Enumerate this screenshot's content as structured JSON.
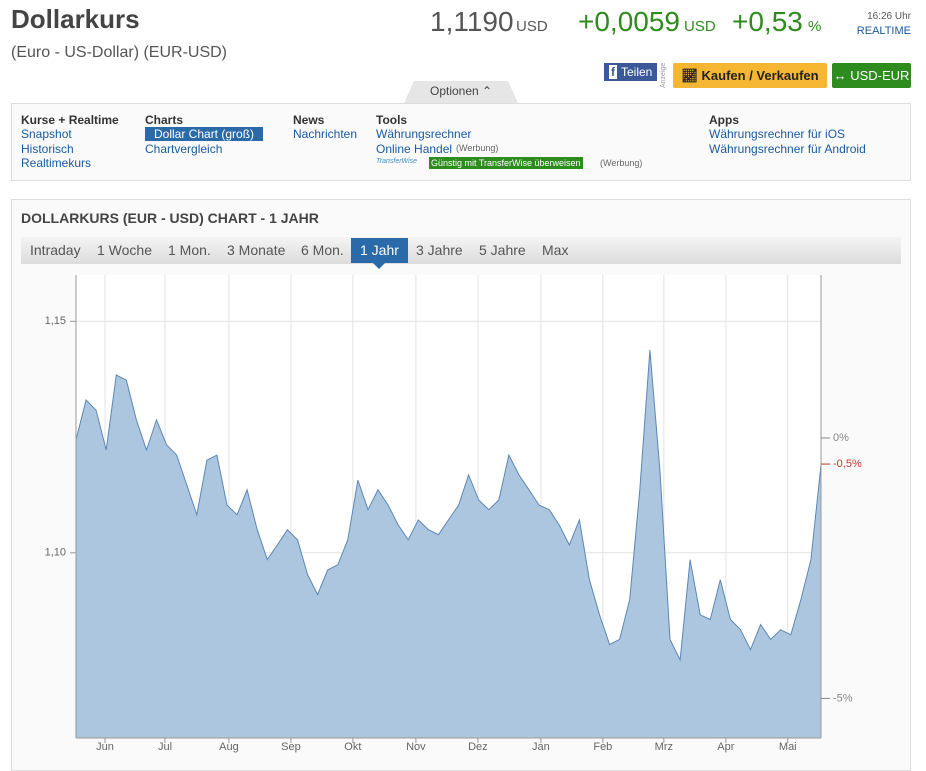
{
  "header": {
    "title": "Dollarkurs",
    "subtitle": "(Euro - US-Dollar) (EUR-USD)",
    "price": "1,1190",
    "price_unit": "USD",
    "change": "+0,0059",
    "change_unit": "USD",
    "change_pct": "+0,53",
    "pct_unit": "%",
    "time": "16:26 Uhr",
    "realtime": "REALTIME"
  },
  "buttons": {
    "share": "Teilen",
    "ad_note": "Anzeige",
    "trade": "Kaufen / Verkaufen",
    "pair": "USD-EUR",
    "options": "Optionen"
  },
  "nav": [
    {
      "heading": "Kurse + Realtime",
      "links": [
        "Snapshot",
        "Historisch",
        "Realtimekurs"
      ]
    },
    {
      "heading": "Charts",
      "links": [
        "Dollar Chart (groß)",
        "Chartvergleich"
      ]
    },
    {
      "heading": "News",
      "links": [
        "Nachrichten"
      ]
    },
    {
      "heading": "Tools",
      "links": [
        "Währungsrechner",
        "Online Handel"
      ],
      "ad": "(Werbung)",
      "promo_logo": "TransferWise",
      "promo": "Günstig mit TransferWise überweisen",
      "promo_ad": "(Werbung)"
    },
    {
      "heading": "Apps",
      "links": [
        "Währungsrechner für iOS",
        "Währungsrechner für Android"
      ]
    }
  ],
  "panel": {
    "title": "DOLLARKURS (EUR - USD) CHART - 1 JAHR",
    "tabs": [
      "Intraday",
      "1 Woche",
      "1 Mon.",
      "3 Monate",
      "6 Mon.",
      "1 Jahr",
      "3 Jahre",
      "5 Jahre",
      "Max"
    ],
    "active_tab": 5
  },
  "chart_data": {
    "type": "area",
    "series": [
      {
        "color": "#5b87b5",
        "fill": "#a9c3dd",
        "values": [
          1.1244,
          1.133,
          1.1308,
          1.1222,
          1.1384,
          1.1373,
          1.1287,
          1.1222,
          1.1287,
          1.1233,
          1.1211,
          1.1147,
          1.1082,
          1.12,
          1.1211,
          1.1103,
          1.1082,
          1.1136,
          1.105,
          1.0985,
          1.1017,
          1.105,
          1.1028,
          1.0953,
          1.091,
          1.0963,
          1.0974,
          1.1028,
          1.1157,
          1.1093,
          1.1136,
          1.1103,
          1.106,
          1.1028,
          1.1071,
          1.105,
          1.1039,
          1.1071,
          1.1103,
          1.1168,
          1.1114,
          1.1093,
          1.1114,
          1.1211,
          1.1168,
          1.1136,
          1.1103,
          1.1093,
          1.106,
          1.1017,
          1.1071,
          1.0942,
          1.0866,
          1.0802,
          1.0813,
          1.0899,
          1.1136,
          1.1438,
          1.1179,
          1.0813,
          1.0769,
          1.0985,
          1.0866,
          1.0856,
          1.0942,
          1.0856,
          1.0834,
          1.0791,
          1.0845,
          1.0813,
          1.0834,
          1.0823,
          1.0899,
          1.0985,
          1.119
        ]
      }
    ],
    "xlim": [
      0,
      74
    ],
    "xticks": [
      {
        "value": 2.88,
        "label": "Jun"
      },
      {
        "value": 8.84,
        "label": "Jul"
      },
      {
        "value": 15.19,
        "label": "Aug"
      },
      {
        "value": 21.35,
        "label": "Sep"
      },
      {
        "value": 27.5,
        "label": "Okt"
      },
      {
        "value": 33.76,
        "label": "Nov"
      },
      {
        "value": 39.92,
        "label": "Dez"
      },
      {
        "value": 46.18,
        "label": "Jan"
      },
      {
        "value": 52.33,
        "label": "Feb"
      },
      {
        "value": 58.39,
        "label": "Mrz"
      },
      {
        "value": 64.55,
        "label": "Apr"
      },
      {
        "value": 70.7,
        "label": "Mai"
      }
    ],
    "ylim": [
      1.06,
      1.16
    ],
    "yticks": [
      {
        "value": 1.1,
        "label": "1,10"
      },
      {
        "value": 1.15,
        "label": "1,15"
      }
    ],
    "y2lim": [
      -5.76,
      3.13
    ],
    "y2ticks": [
      {
        "value": -5,
        "label": "-5%"
      },
      {
        "value": -0.5,
        "label": "-0,5%"
      },
      {
        "value": 0,
        "label": "0%"
      }
    ],
    "y2tick_colors": [
      "#888888",
      "#c0392b",
      "#888888"
    ],
    "grid": true
  }
}
